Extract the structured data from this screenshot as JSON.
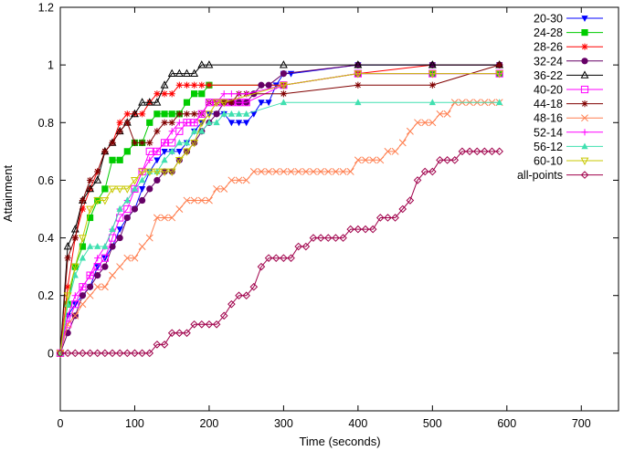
{
  "chart_data": {
    "type": "line",
    "title": "",
    "xlabel": "Time (seconds)",
    "ylabel": "Attainment",
    "xlim": [
      0,
      750
    ],
    "ylim": [
      -0.2,
      1.2
    ],
    "xticks": [
      0,
      100,
      200,
      300,
      400,
      500,
      600,
      700
    ],
    "yticks": [
      0,
      0.2,
      0.4,
      0.6,
      0.8,
      1,
      1.2
    ],
    "xtick_labels": [
      "0",
      "100",
      "200",
      "300",
      "400",
      "500",
      "600",
      "700"
    ],
    "ytick_labels": [
      "0",
      "0.2",
      "0.4",
      "0.6",
      "0.8",
      "1",
      "1.2"
    ],
    "grid": false,
    "legend_position": "top-right",
    "series": [
      {
        "name": "20-30",
        "color": "#0000ff",
        "marker": "triangle-down",
        "x": [
          0,
          10,
          20,
          30,
          40,
          50,
          60,
          70,
          80,
          90,
          100,
          110,
          120,
          130,
          140,
          150,
          160,
          170,
          180,
          190,
          200,
          210,
          220,
          230,
          240,
          250,
          260,
          270,
          280,
          290,
          300,
          310,
          400,
          500,
          590
        ],
        "y": [
          0,
          0.13,
          0.17,
          0.2,
          0.23,
          0.3,
          0.33,
          0.37,
          0.43,
          0.47,
          0.5,
          0.57,
          0.63,
          0.67,
          0.7,
          0.7,
          0.7,
          0.73,
          0.77,
          0.8,
          0.83,
          0.83,
          0.83,
          0.8,
          0.8,
          0.8,
          0.83,
          0.87,
          0.87,
          0.93,
          0.97,
          0.97,
          1,
          1,
          1
        ]
      },
      {
        "name": "24-28",
        "color": "#00cc00",
        "marker": "square",
        "x": [
          0,
          10,
          20,
          30,
          40,
          50,
          60,
          70,
          80,
          90,
          100,
          110,
          120,
          130,
          140,
          150,
          160,
          170,
          180,
          190,
          200,
          300,
          400,
          500,
          590
        ],
        "y": [
          0,
          0.17,
          0.3,
          0.37,
          0.47,
          0.53,
          0.57,
          0.67,
          0.67,
          0.7,
          0.73,
          0.73,
          0.8,
          0.83,
          0.83,
          0.83,
          0.83,
          0.87,
          0.9,
          0.9,
          0.93,
          0.93,
          0.97,
          0.97,
          0.97
        ]
      },
      {
        "name": "28-26",
        "color": "#ff0000",
        "marker": "star",
        "x": [
          0,
          10,
          20,
          30,
          40,
          50,
          60,
          70,
          80,
          90,
          100,
          110,
          120,
          130,
          140,
          150,
          160,
          170,
          180,
          190,
          200,
          300,
          400,
          500,
          590
        ],
        "y": [
          0,
          0.23,
          0.4,
          0.5,
          0.57,
          0.63,
          0.7,
          0.73,
          0.8,
          0.83,
          0.83,
          0.83,
          0.87,
          0.9,
          0.9,
          0.9,
          0.93,
          0.93,
          0.93,
          0.93,
          0.93,
          0.93,
          0.97,
          1,
          1
        ]
      },
      {
        "name": "32-24",
        "color": "#660066",
        "marker": "circle-filled",
        "x": [
          0,
          10,
          20,
          30,
          40,
          50,
          60,
          70,
          80,
          90,
          100,
          110,
          120,
          130,
          140,
          150,
          160,
          170,
          180,
          190,
          200,
          210,
          220,
          230,
          240,
          250,
          260,
          270,
          280,
          300,
          400,
          500,
          590
        ],
        "y": [
          0,
          0.07,
          0.13,
          0.2,
          0.23,
          0.27,
          0.3,
          0.37,
          0.4,
          0.47,
          0.5,
          0.53,
          0.57,
          0.6,
          0.63,
          0.63,
          0.67,
          0.7,
          0.73,
          0.77,
          0.8,
          0.83,
          0.87,
          0.87,
          0.87,
          0.87,
          0.9,
          0.93,
          0.93,
          0.97,
          1,
          1,
          1
        ]
      },
      {
        "name": "36-22",
        "color": "#000000",
        "marker": "triangle-up-open",
        "x": [
          0,
          10,
          20,
          30,
          40,
          50,
          60,
          70,
          80,
          90,
          100,
          110,
          120,
          130,
          140,
          150,
          160,
          170,
          180,
          190,
          200,
          300,
          400,
          500,
          590
        ],
        "y": [
          0,
          0.37,
          0.43,
          0.53,
          0.57,
          0.6,
          0.7,
          0.73,
          0.77,
          0.8,
          0.83,
          0.87,
          0.87,
          0.87,
          0.93,
          0.97,
          0.97,
          0.97,
          0.97,
          1,
          1,
          1,
          1,
          1,
          1
        ]
      },
      {
        "name": "40-20",
        "color": "#ff00ff",
        "marker": "square-open",
        "x": [
          0,
          10,
          20,
          30,
          40,
          50,
          60,
          70,
          80,
          90,
          100,
          110,
          120,
          130,
          140,
          150,
          160,
          170,
          180,
          190,
          200,
          210,
          220,
          230,
          240,
          250,
          300,
          400,
          500,
          590
        ],
        "y": [
          0,
          0.1,
          0.17,
          0.23,
          0.27,
          0.3,
          0.33,
          0.4,
          0.47,
          0.5,
          0.57,
          0.63,
          0.7,
          0.7,
          0.73,
          0.73,
          0.77,
          0.8,
          0.8,
          0.83,
          0.87,
          0.87,
          0.87,
          0.87,
          0.87,
          0.87,
          0.93,
          0.97,
          0.97,
          0.97
        ]
      },
      {
        "name": "44-18",
        "color": "#800000",
        "marker": "star",
        "x": [
          0,
          10,
          20,
          30,
          40,
          50,
          60,
          70,
          80,
          90,
          100,
          110,
          120,
          130,
          140,
          150,
          160,
          170,
          180,
          190,
          200,
          210,
          220,
          230,
          240,
          250,
          300,
          400,
          500,
          590
        ],
        "y": [
          0,
          0.33,
          0.4,
          0.53,
          0.6,
          0.63,
          0.7,
          0.73,
          0.77,
          0.8,
          0.73,
          0.73,
          0.73,
          0.77,
          0.8,
          0.8,
          0.83,
          0.83,
          0.83,
          0.83,
          0.87,
          0.87,
          0.87,
          0.87,
          0.9,
          0.9,
          0.9,
          0.93,
          0.93,
          1
        ]
      },
      {
        "name": "48-16",
        "color": "#ff7f50",
        "marker": "x",
        "x": [
          0,
          10,
          20,
          30,
          40,
          50,
          60,
          70,
          80,
          90,
          100,
          110,
          120,
          130,
          140,
          150,
          160,
          170,
          180,
          190,
          200,
          210,
          220,
          230,
          240,
          250,
          260,
          270,
          280,
          290,
          300,
          310,
          320,
          330,
          340,
          350,
          360,
          370,
          380,
          390,
          400,
          410,
          420,
          430,
          440,
          450,
          460,
          470,
          480,
          490,
          500,
          510,
          520,
          530,
          540,
          550,
          560,
          570,
          580,
          590
        ],
        "y": [
          0,
          0.1,
          0.13,
          0.17,
          0.2,
          0.23,
          0.23,
          0.27,
          0.3,
          0.33,
          0.33,
          0.37,
          0.4,
          0.47,
          0.47,
          0.47,
          0.5,
          0.53,
          0.53,
          0.53,
          0.53,
          0.57,
          0.57,
          0.6,
          0.6,
          0.6,
          0.63,
          0.63,
          0.63,
          0.63,
          0.63,
          0.63,
          0.63,
          0.63,
          0.63,
          0.63,
          0.63,
          0.63,
          0.63,
          0.63,
          0.67,
          0.67,
          0.67,
          0.67,
          0.7,
          0.7,
          0.73,
          0.77,
          0.8,
          0.8,
          0.8,
          0.83,
          0.83,
          0.87,
          0.87,
          0.87,
          0.87,
          0.87,
          0.87,
          0.87
        ]
      },
      {
        "name": "52-14",
        "color": "#ff00ff",
        "marker": "plus",
        "x": [
          0,
          10,
          20,
          30,
          40,
          50,
          60,
          70,
          80,
          90,
          100,
          110,
          120,
          130,
          140,
          150,
          160,
          170,
          180,
          190,
          200,
          210,
          220,
          230,
          240,
          250,
          300,
          400,
          500,
          590
        ],
        "y": [
          0,
          0.13,
          0.2,
          0.23,
          0.27,
          0.33,
          0.37,
          0.43,
          0.5,
          0.53,
          0.57,
          0.63,
          0.67,
          0.7,
          0.73,
          0.77,
          0.8,
          0.8,
          0.8,
          0.83,
          0.87,
          0.87,
          0.9,
          0.9,
          0.9,
          0.9,
          0.93,
          0.97,
          0.97,
          0.97
        ]
      },
      {
        "name": "56-12",
        "color": "#40e0b0",
        "marker": "triangle-up-filled",
        "x": [
          0,
          10,
          20,
          30,
          40,
          50,
          60,
          70,
          80,
          90,
          100,
          110,
          120,
          130,
          140,
          150,
          160,
          170,
          180,
          190,
          200,
          210,
          220,
          230,
          240,
          250,
          300,
          400,
          500,
          590
        ],
        "y": [
          0,
          0.17,
          0.27,
          0.33,
          0.37,
          0.37,
          0.37,
          0.43,
          0.5,
          0.53,
          0.57,
          0.6,
          0.63,
          0.63,
          0.67,
          0.7,
          0.73,
          0.73,
          0.77,
          0.77,
          0.8,
          0.8,
          0.83,
          0.83,
          0.83,
          0.83,
          0.87,
          0.87,
          0.87,
          0.87
        ]
      },
      {
        "name": "60-10",
        "color": "#c8c800",
        "marker": "triangle-down-open",
        "x": [
          0,
          10,
          20,
          30,
          40,
          50,
          60,
          70,
          80,
          90,
          100,
          110,
          120,
          130,
          140,
          150,
          160,
          170,
          180,
          190,
          200,
          210,
          220,
          300,
          400,
          500,
          590
        ],
        "y": [
          0,
          0.2,
          0.3,
          0.4,
          0.5,
          0.53,
          0.53,
          0.57,
          0.57,
          0.57,
          0.6,
          0.63,
          0.63,
          0.63,
          0.63,
          0.63,
          0.67,
          0.7,
          0.73,
          0.8,
          0.83,
          0.87,
          0.87,
          0.93,
          0.97,
          0.97,
          0.97
        ]
      },
      {
        "name": "all-points",
        "color": "#a0004b",
        "marker": "diamond-open",
        "x": [
          0,
          10,
          20,
          30,
          40,
          50,
          60,
          70,
          80,
          90,
          100,
          110,
          120,
          130,
          140,
          150,
          160,
          170,
          180,
          190,
          200,
          210,
          220,
          230,
          240,
          250,
          260,
          270,
          280,
          290,
          300,
          310,
          320,
          330,
          340,
          350,
          360,
          370,
          380,
          390,
          400,
          410,
          420,
          430,
          440,
          450,
          460,
          470,
          480,
          490,
          500,
          510,
          520,
          530,
          540,
          550,
          560,
          570,
          580,
          590
        ],
        "y": [
          0,
          0,
          0,
          0,
          0,
          0,
          0,
          0,
          0,
          0,
          0,
          0,
          0,
          0.03,
          0.03,
          0.07,
          0.07,
          0.07,
          0.1,
          0.1,
          0.1,
          0.1,
          0.13,
          0.17,
          0.2,
          0.2,
          0.23,
          0.3,
          0.33,
          0.33,
          0.33,
          0.33,
          0.37,
          0.37,
          0.4,
          0.4,
          0.4,
          0.4,
          0.4,
          0.43,
          0.43,
          0.43,
          0.43,
          0.47,
          0.47,
          0.47,
          0.5,
          0.53,
          0.6,
          0.63,
          0.63,
          0.67,
          0.67,
          0.67,
          0.7,
          0.7,
          0.7,
          0.7,
          0.7,
          0.7
        ]
      }
    ]
  }
}
